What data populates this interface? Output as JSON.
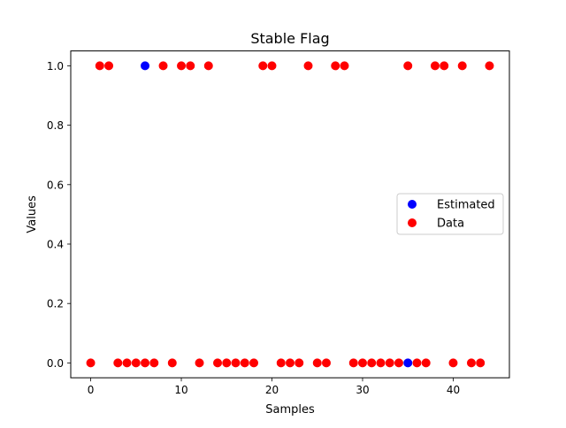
{
  "chart_data": {
    "type": "scatter",
    "title": "Stable Flag",
    "xlabel": "Samples",
    "ylabel": "Values",
    "xlim": [
      -2.2,
      46.2
    ],
    "ylim": [
      -0.05,
      1.05
    ],
    "x_ticks": [
      0,
      10,
      20,
      30,
      40
    ],
    "y_ticks": [
      0.0,
      0.2,
      0.4,
      0.6,
      0.8,
      1.0
    ],
    "x_tick_labels": [
      "0",
      "10",
      "20",
      "30",
      "40"
    ],
    "y_tick_labels": [
      "0.0",
      "0.2",
      "0.4",
      "0.6",
      "0.8",
      "1.0"
    ],
    "grid": false,
    "legend_position": "center-right",
    "series": [
      {
        "name": "Estimated",
        "color": "#0000ff",
        "marker": "circle",
        "x": [
          6,
          35
        ],
        "y": [
          1,
          0
        ]
      },
      {
        "name": "Data",
        "color": "#ff0000",
        "marker": "circle",
        "x": [
          0,
          1,
          2,
          3,
          4,
          5,
          6,
          7,
          8,
          9,
          10,
          11,
          12,
          13,
          14,
          15,
          16,
          17,
          18,
          19,
          20,
          21,
          22,
          23,
          24,
          25,
          26,
          27,
          28,
          29,
          30,
          31,
          32,
          33,
          34,
          35,
          36,
          37,
          38,
          39,
          40,
          41,
          42,
          43,
          44
        ],
        "y": [
          0,
          1,
          1,
          0,
          0,
          0,
          0,
          0,
          1,
          0,
          1,
          1,
          0,
          1,
          0,
          0,
          0,
          0,
          0,
          1,
          1,
          0,
          0,
          0,
          1,
          0,
          0,
          1,
          1,
          0,
          0,
          0,
          0,
          0,
          0,
          1,
          0,
          0,
          1,
          1,
          0,
          1,
          0,
          0,
          1
        ]
      }
    ]
  }
}
